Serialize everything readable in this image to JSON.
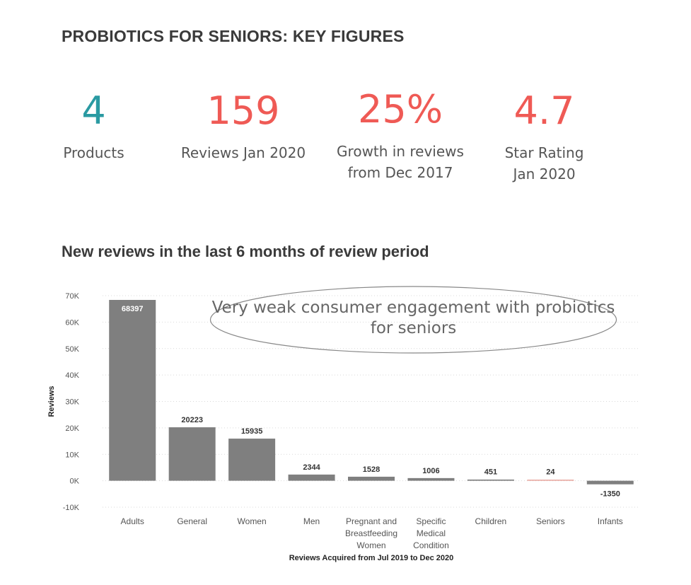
{
  "page_title": "PROBIOTICS FOR SENIORS: KEY FIGURES",
  "kpis": [
    {
      "value": "4",
      "label": "Products",
      "color": "#2a9aa2"
    },
    {
      "value": "159",
      "label": "Reviews Jan 2020",
      "color": "#ef5a55"
    },
    {
      "value": "25%",
      "label": "Growth in reviews from Dec 2017",
      "color": "#ef5a55"
    },
    {
      "value": "4.7",
      "label": "Star Rating Jan 2020",
      "color": "#ef5a55"
    }
  ],
  "colors": {
    "bar": "#7f7f7f",
    "highlight": "#e8a39a",
    "grid": "#d9d9d9",
    "annotation_border": "#888888"
  },
  "annotation": "Very weak consumer engagement with probiotics for seniors",
  "chart_data": {
    "type": "bar",
    "title": "New reviews in the last 6 months of review period",
    "xlabel": "Reviews Acquired from Jul 2019 to Dec 2020",
    "ylabel": "Reviews",
    "categories": [
      "Adults",
      "General",
      "Women",
      "Men",
      "Pregnant and Breastfeeding Women",
      "Specific Medical Condition",
      "Children",
      "Seniors",
      "Infants"
    ],
    "category_lines": [
      [
        "Adults"
      ],
      [
        "General"
      ],
      [
        "Women"
      ],
      [
        "Men"
      ],
      [
        "Pregnant and",
        "Breastfeeding",
        "Women"
      ],
      [
        "Specific",
        "Medical",
        "Condition"
      ],
      [
        "Children"
      ],
      [
        "Seniors"
      ],
      [
        "Infants"
      ]
    ],
    "values": [
      68397,
      20223,
      15935,
      2344,
      1528,
      1006,
      451,
      24,
      -1350
    ],
    "highlight_category": "Seniors",
    "ylim": [
      -10000,
      70000
    ],
    "yticks": [
      -10000,
      0,
      10000,
      20000,
      30000,
      40000,
      50000,
      60000,
      70000
    ],
    "ytick_labels": [
      "-10K",
      "0K",
      "10K",
      "20K",
      "30K",
      "40K",
      "50K",
      "60K",
      "70K"
    ],
    "grid": true
  }
}
